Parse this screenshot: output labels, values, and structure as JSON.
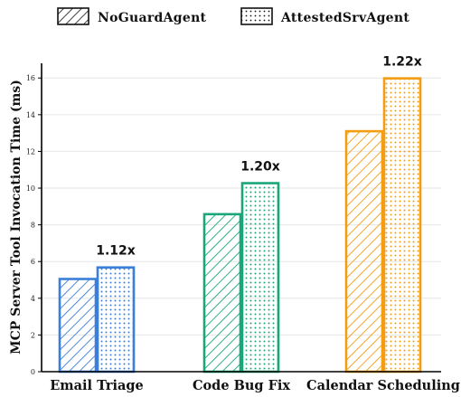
{
  "chart_data": {
    "type": "bar",
    "categories": [
      "Email Triage",
      "Code Bug Fix",
      "Calendar Scheduling"
    ],
    "series": [
      {
        "name": "NoGuardAgent",
        "values": [
          5.05,
          8.58,
          13.1
        ],
        "pattern": "hatch"
      },
      {
        "name": "AttestedSrvAgent",
        "values": [
          5.68,
          10.27,
          15.98
        ],
        "pattern": "dots"
      }
    ],
    "ratio_labels": [
      "1.12x",
      "1.20x",
      "1.22x"
    ],
    "category_colors": [
      "#3b7fd9",
      "#1aa67a",
      "#f29d12"
    ],
    "ylabel": "MCP Server Tool Invocation Time (ms)",
    "xlabel": "",
    "ylim": [
      0,
      16.8
    ],
    "yticks": [
      0,
      2,
      4,
      6,
      8,
      10,
      12,
      14,
      16
    ],
    "grid": true,
    "legend_position": "top-center"
  }
}
